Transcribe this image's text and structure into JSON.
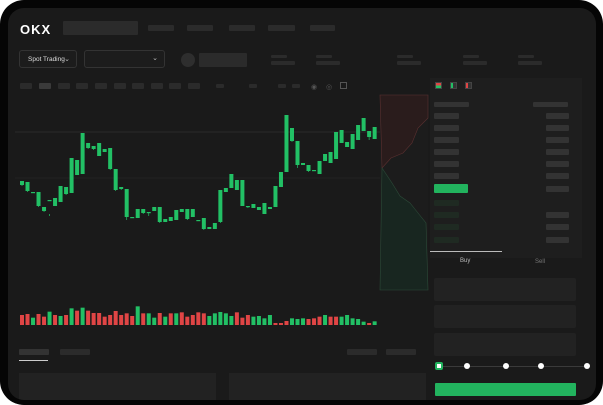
{
  "header": {
    "logo": "OKX"
  },
  "trade_bar": {
    "market_selector": "Spot Trading"
  },
  "order_form": {
    "tabs": [
      "Buy",
      "Sell"
    ],
    "slider_percent": 0
  },
  "colors": {
    "up": "#22c065",
    "down": "#e04545",
    "accent": "#22b35e",
    "background": "#1a1a1a"
  },
  "icons": [
    "chevron-down-icon",
    "order-book-both-icon",
    "order-book-bids-icon",
    "order-book-asks-icon",
    "camera-icon",
    "settings-icon",
    "fullscreen-icon"
  ],
  "chart_data": {
    "type": "candlestick",
    "candles": [
      [
        115,
        119,
        114,
        119
      ],
      [
        109,
        118,
        108,
        118
      ],
      [
        107,
        108,
        107,
        108
      ],
      [
        94,
        108,
        93,
        108
      ],
      [
        89,
        93,
        88,
        93
      ],
      [
        100,
        86,
        84,
        100
      ],
      [
        94,
        102,
        94,
        102
      ],
      [
        98,
        114,
        98,
        114
      ],
      [
        106,
        113,
        105,
        113
      ],
      [
        107,
        135,
        107,
        142
      ],
      [
        125,
        134,
        125,
        140
      ],
      [
        126,
        155,
        126,
        167
      ],
      [
        152,
        157,
        151,
        157
      ],
      [
        151,
        154,
        150,
        154
      ],
      [
        144,
        154,
        144,
        157
      ],
      [
        148,
        151,
        148,
        151
      ],
      [
        131,
        152,
        130,
        152
      ],
      [
        110,
        131,
        109,
        131
      ],
      [
        111,
        113,
        110,
        113
      ],
      [
        83,
        111,
        80,
        111
      ],
      [
        82,
        83,
        82,
        83
      ],
      [
        82,
        91,
        82,
        91
      ],
      [
        87,
        91,
        86,
        91
      ],
      [
        87,
        88,
        84,
        88
      ],
      [
        89,
        93,
        89,
        93
      ],
      [
        78,
        93,
        77,
        93
      ],
      [
        78,
        81,
        78,
        81
      ],
      [
        79,
        83,
        79,
        83
      ],
      [
        80,
        90,
        80,
        90
      ],
      [
        88,
        91,
        88,
        91
      ],
      [
        81,
        91,
        80,
        91
      ],
      [
        83,
        91,
        83,
        91
      ],
      [
        80,
        80,
        79,
        80
      ],
      [
        71,
        82,
        70,
        82
      ],
      [
        71,
        73,
        71,
        73
      ],
      [
        71,
        77,
        71,
        77
      ],
      [
        78,
        107,
        77,
        110
      ],
      [
        108,
        112,
        108,
        112
      ],
      [
        112,
        121,
        112,
        126
      ],
      [
        110,
        120,
        110,
        120
      ],
      [
        94,
        116,
        94,
        120
      ],
      [
        93,
        93,
        92,
        94
      ],
      [
        92,
        96,
        92,
        96
      ],
      [
        90,
        93,
        90,
        93
      ],
      [
        86,
        94,
        86,
        97
      ],
      [
        91,
        93,
        91,
        93
      ],
      [
        93,
        114,
        93,
        114
      ],
      [
        113,
        128,
        113,
        128
      ],
      [
        128,
        170,
        128,
        185
      ],
      [
        159,
        172,
        158,
        172
      ],
      [
        135,
        159,
        132,
        159
      ],
      [
        135,
        137,
        135,
        137
      ],
      [
        129,
        135,
        128,
        135
      ],
      [
        129,
        130,
        129,
        130
      ],
      [
        126,
        139,
        126,
        139
      ],
      [
        139,
        141,
        139,
        146
      ],
      [
        137,
        141,
        137,
        148
      ],
      [
        141,
        168,
        141,
        168
      ],
      [
        157,
        170,
        157,
        170
      ],
      [
        153,
        158,
        153,
        158
      ],
      [
        151,
        160,
        151,
        166
      ],
      [
        160,
        169,
        160,
        175
      ],
      [
        169,
        178,
        169,
        182
      ],
      [
        163,
        169,
        160,
        169
      ],
      [
        161,
        167,
        161,
        173
      ]
    ],
    "volume": [
      30,
      33,
      22,
      33,
      25,
      40,
      30,
      27,
      30,
      50,
      43,
      52,
      43,
      36,
      36,
      25,
      30,
      42,
      30,
      35,
      27,
      56,
      35,
      35,
      22,
      36,
      25,
      35,
      35,
      38,
      25,
      30,
      38,
      35,
      27,
      35,
      39,
      35,
      27,
      38,
      22,
      30,
      25,
      27,
      20,
      30,
      6,
      6,
      12,
      20,
      18,
      20,
      18,
      20,
      25,
      30,
      25,
      25,
      25,
      30,
      20,
      18,
      10,
      6,
      11
    ],
    "volume_dir": "rrgrrgrgrgrgrrrrrrrrrgrggrgrgrrrrrgggggrrrggggrrrgggrrrgrrgggggrg"
  }
}
